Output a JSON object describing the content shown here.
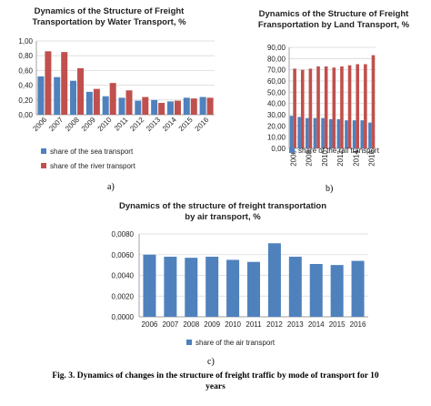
{
  "colors": {
    "blue": "#4f81bd",
    "red": "#c0504d",
    "grid": "#d9d9d9",
    "axis": "#8c8c8c"
  },
  "panels": {
    "a": "a)",
    "b": "b)",
    "c": "c)"
  },
  "caption": {
    "line1": "Fig. 3. Dynamics of changes in the structure of freight traffic by mode of transport for 10",
    "line2": "years"
  },
  "chart_data": [
    {
      "type": "bar",
      "title_line1": "Dynamics of the Structure of Freight",
      "title_line2": "Transportation  by Water Transport, %",
      "categories": [
        "2006",
        "2007",
        "2008",
        "2009",
        "2010",
        "2011",
        "2012",
        "2013",
        "2014",
        "2015",
        "2016"
      ],
      "series": [
        {
          "name": "share of the sea transport",
          "color": "#4f81bd",
          "values": [
            0.52,
            0.51,
            0.46,
            0.31,
            0.25,
            0.23,
            0.19,
            0.2,
            0.18,
            0.23,
            0.24
          ]
        },
        {
          "name": "share of the river transport",
          "color": "#c0504d",
          "values": [
            0.86,
            0.85,
            0.63,
            0.35,
            0.43,
            0.33,
            0.24,
            0.16,
            0.19,
            0.22,
            0.23
          ]
        }
      ],
      "ylim": [
        0,
        1.0
      ],
      "yticks": [
        "0,00",
        "0,20",
        "0,40",
        "0,60",
        "0,80",
        "1,00"
      ],
      "grid": true,
      "legend": "bottom",
      "xlabel": "",
      "ylabel": ""
    },
    {
      "type": "bar",
      "title_line1": "Dynamics of the Structure of Freight",
      "title_line2": "Fransportation by Land Transport, %",
      "categories": [
        "2006",
        "2007",
        "2008",
        "2009",
        "2010",
        "2011",
        "2012",
        "2013",
        "2014",
        "2015",
        "2016"
      ],
      "x_tick_labels": [
        "2006",
        "2008",
        "2010",
        "2012",
        "2014",
        "2016"
      ],
      "series": [
        {
          "name": "share of the rail transport",
          "color": "#4f81bd",
          "values": [
            29,
            28,
            27,
            27,
            27,
            26,
            26,
            25,
            25,
            25,
            23
          ]
        },
        {
          "name": "",
          "color": "#c0504d",
          "values": [
            71,
            70,
            71,
            73,
            73,
            72,
            73,
            74,
            75,
            75,
            83
          ]
        }
      ],
      "ylim": [
        0,
        90
      ],
      "yticks": [
        "0,00",
        "10,00",
        "20,00",
        "30,00",
        "40,00",
        "50,00",
        "60,00",
        "70,00",
        "80,00",
        "90,00"
      ],
      "grid": true,
      "legend": "bottom",
      "xlabel": "",
      "ylabel": ""
    },
    {
      "type": "bar",
      "title_line1": "Dynamics of the structure of freight transportation",
      "title_line2": "by air transport, %",
      "categories": [
        "2006",
        "2007",
        "2008",
        "2009",
        "2010",
        "2011",
        "2012",
        "2013",
        "2014",
        "2015",
        "2016"
      ],
      "series": [
        {
          "name": "share of the air transport",
          "color": "#4f81bd",
          "values": [
            0.006,
            0.0058,
            0.0057,
            0.0058,
            0.0055,
            0.0053,
            0.0071,
            0.0058,
            0.0051,
            0.005,
            0.0054
          ]
        }
      ],
      "ylim": [
        0,
        0.008
      ],
      "yticks": [
        "0,0000",
        "0,0020",
        "0,0040",
        "0,0060",
        "0,0080"
      ],
      "grid": true,
      "legend": "bottom",
      "xlabel": "",
      "ylabel": ""
    }
  ]
}
